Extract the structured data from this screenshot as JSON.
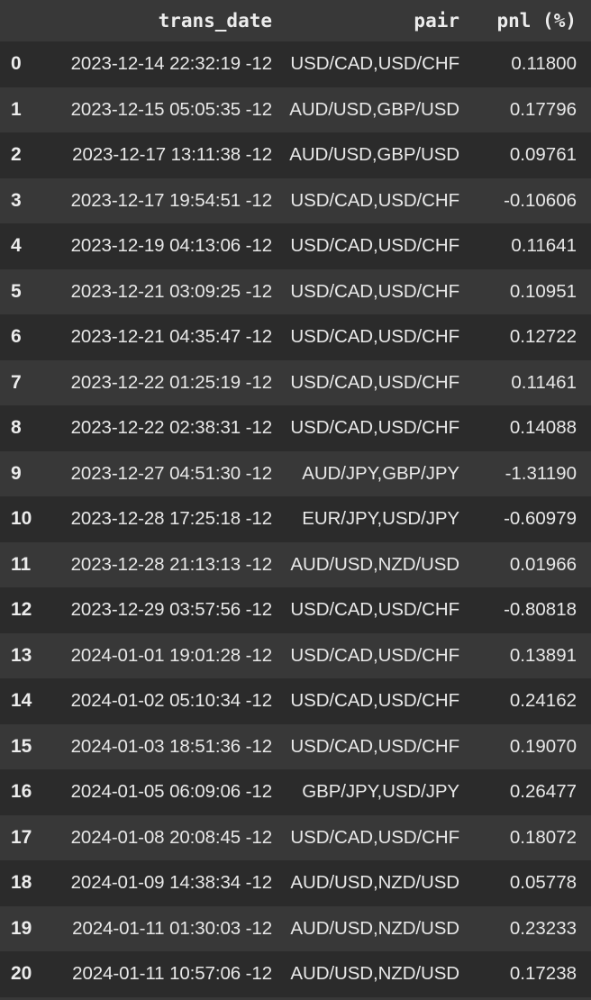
{
  "table": {
    "headers": {
      "index": "",
      "trans_date": "trans_date",
      "pair": "pair",
      "pnl": "pnl (%)"
    },
    "rows": [
      {
        "index": "0",
        "trans_date": "2023-12-14 22:32:19 -12",
        "pair": "USD/CAD,USD/CHF",
        "pnl": "0.11800"
      },
      {
        "index": "1",
        "trans_date": "2023-12-15 05:05:35 -12",
        "pair": "AUD/USD,GBP/USD",
        "pnl": "0.17796"
      },
      {
        "index": "2",
        "trans_date": "2023-12-17 13:11:38 -12",
        "pair": "AUD/USD,GBP/USD",
        "pnl": "0.09761"
      },
      {
        "index": "3",
        "trans_date": "2023-12-17 19:54:51 -12",
        "pair": "USD/CAD,USD/CHF",
        "pnl": "-0.10606"
      },
      {
        "index": "4",
        "trans_date": "2023-12-19 04:13:06 -12",
        "pair": "USD/CAD,USD/CHF",
        "pnl": "0.11641"
      },
      {
        "index": "5",
        "trans_date": "2023-12-21 03:09:25 -12",
        "pair": "USD/CAD,USD/CHF",
        "pnl": "0.10951"
      },
      {
        "index": "6",
        "trans_date": "2023-12-21 04:35:47 -12",
        "pair": "USD/CAD,USD/CHF",
        "pnl": "0.12722"
      },
      {
        "index": "7",
        "trans_date": "2023-12-22 01:25:19 -12",
        "pair": "USD/CAD,USD/CHF",
        "pnl": "0.11461"
      },
      {
        "index": "8",
        "trans_date": "2023-12-22 02:38:31 -12",
        "pair": "USD/CAD,USD/CHF",
        "pnl": "0.14088"
      },
      {
        "index": "9",
        "trans_date": "2023-12-27 04:51:30 -12",
        "pair": "AUD/JPY,GBP/JPY",
        "pnl": "-1.31190"
      },
      {
        "index": "10",
        "trans_date": "2023-12-28 17:25:18 -12",
        "pair": "EUR/JPY,USD/JPY",
        "pnl": "-0.60979"
      },
      {
        "index": "11",
        "trans_date": "2023-12-28 21:13:13 -12",
        "pair": "AUD/USD,NZD/USD",
        "pnl": "0.01966"
      },
      {
        "index": "12",
        "trans_date": "2023-12-29 03:57:56 -12",
        "pair": "USD/CAD,USD/CHF",
        "pnl": "-0.80818"
      },
      {
        "index": "13",
        "trans_date": "2024-01-01 19:01:28 -12",
        "pair": "USD/CAD,USD/CHF",
        "pnl": "0.13891"
      },
      {
        "index": "14",
        "trans_date": "2024-01-02 05:10:34 -12",
        "pair": "USD/CAD,USD/CHF",
        "pnl": "0.24162"
      },
      {
        "index": "15",
        "trans_date": "2024-01-03 18:51:36 -12",
        "pair": "USD/CAD,USD/CHF",
        "pnl": "0.19070"
      },
      {
        "index": "16",
        "trans_date": "2024-01-05 06:09:06 -12",
        "pair": "GBP/JPY,USD/JPY",
        "pnl": "0.26477"
      },
      {
        "index": "17",
        "trans_date": "2024-01-08 20:08:45 -12",
        "pair": "USD/CAD,USD/CHF",
        "pnl": "0.18072"
      },
      {
        "index": "18",
        "trans_date": "2024-01-09 14:38:34 -12",
        "pair": "AUD/USD,NZD/USD",
        "pnl": "0.05778"
      },
      {
        "index": "19",
        "trans_date": "2024-01-11 01:30:03 -12",
        "pair": "AUD/USD,NZD/USD",
        "pnl": "0.23233"
      },
      {
        "index": "20",
        "trans_date": "2024-01-11 10:57:06 -12",
        "pair": "AUD/USD,NZD/USD",
        "pnl": "0.17238"
      }
    ]
  },
  "colors": {
    "background": "#383838",
    "row_stripe": "#2b2b2b",
    "text": "#e8e8e8"
  }
}
